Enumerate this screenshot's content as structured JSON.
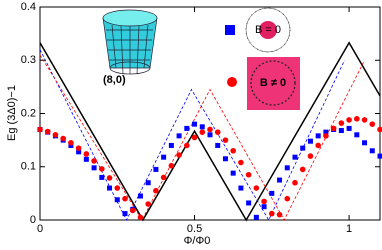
{
  "chart_data": {
    "type": "line",
    "xlabel": "Φ/Φ0",
    "ylabel": "Eg (3Δ0)−1",
    "xlim": [
      0,
      1.1
    ],
    "ylim": [
      0,
      0.4
    ],
    "xticks": [
      0,
      0.5,
      1
    ],
    "yticks": [
      0,
      0.1,
      0.2,
      0.3,
      0.4
    ],
    "annotations": [
      "(8,0)",
      "B = 0",
      "B ≠ 0"
    ],
    "series": [
      {
        "color": "#000000",
        "style": "solid",
        "x": [
          0,
          0.333,
          0.5,
          0.667,
          1,
          1.1
        ],
        "values": [
          0.333,
          0,
          0.167,
          0,
          0.333,
          0.233
        ]
      },
      {
        "color": "#0000ff",
        "style": "dashed",
        "x": [
          0,
          0.28,
          0.49,
          0.74,
          0.985
        ],
        "values": [
          0.32,
          0,
          0.245,
          0,
          0.3
        ]
      },
      {
        "color": "#ff0000",
        "style": "dashed",
        "x": [
          0,
          0.33,
          0.55,
          0.79,
          1.05
        ],
        "values": [
          0.31,
          0,
          0.245,
          0,
          0.3
        ]
      },
      {
        "color": "#0000ff",
        "style": "markers",
        "marker": "square",
        "x": [
          0,
          0.025,
          0.05,
          0.075,
          0.1,
          0.125,
          0.15,
          0.175,
          0.2,
          0.225,
          0.25,
          0.275,
          0.3,
          0.325,
          0.35,
          0.375,
          0.4,
          0.425,
          0.45,
          0.475,
          0.5,
          0.525,
          0.55,
          0.575,
          0.6,
          0.625,
          0.65,
          0.675,
          0.7,
          0.725,
          0.75,
          0.775,
          0.8,
          0.825,
          0.85,
          0.875,
          0.9,
          0.925,
          0.95,
          0.975,
          1,
          1.025,
          1.05,
          1.075,
          1.1
        ],
        "values": [
          0.17,
          0.165,
          0.158,
          0.15,
          0.14,
          0.128,
          0.114,
          0.098,
          0.08,
          0.06,
          0.038,
          0.012,
          0.02,
          0.045,
          0.07,
          0.095,
          0.118,
          0.14,
          0.158,
          0.172,
          0.18,
          0.175,
          0.16,
          0.14,
          0.115,
          0.088,
          0.06,
          0.032,
          0.005,
          0.025,
          0.05,
          0.075,
          0.098,
          0.118,
          0.135,
          0.148,
          0.158,
          0.165,
          0.17,
          0.168,
          0.172,
          0.16,
          0.145,
          0.13,
          0.12
        ]
      },
      {
        "color": "#ff0000",
        "style": "markers",
        "marker": "circle",
        "x": [
          0,
          0.025,
          0.05,
          0.075,
          0.1,
          0.125,
          0.15,
          0.175,
          0.2,
          0.225,
          0.25,
          0.275,
          0.3,
          0.325,
          0.35,
          0.375,
          0.4,
          0.425,
          0.45,
          0.475,
          0.5,
          0.525,
          0.55,
          0.575,
          0.6,
          0.625,
          0.65,
          0.675,
          0.7,
          0.725,
          0.75,
          0.775,
          0.8,
          0.825,
          0.85,
          0.875,
          0.9,
          0.925,
          0.95,
          0.975,
          1,
          1.025,
          1.05,
          1.075,
          1.1
        ],
        "values": [
          0.17,
          0.166,
          0.16,
          0.153,
          0.145,
          0.135,
          0.124,
          0.111,
          0.096,
          0.079,
          0.06,
          0.04,
          0.018,
          0.005,
          0.03,
          0.055,
          0.08,
          0.102,
          0.122,
          0.14,
          0.155,
          0.165,
          0.17,
          0.165,
          0.15,
          0.13,
          0.108,
          0.085,
          0.06,
          0.035,
          0.012,
          0.01,
          0.04,
          0.07,
          0.095,
          0.12,
          0.14,
          0.158,
          0.172,
          0.182,
          0.188,
          0.19,
          0.188,
          0.18,
          0.17
        ]
      }
    ]
  }
}
